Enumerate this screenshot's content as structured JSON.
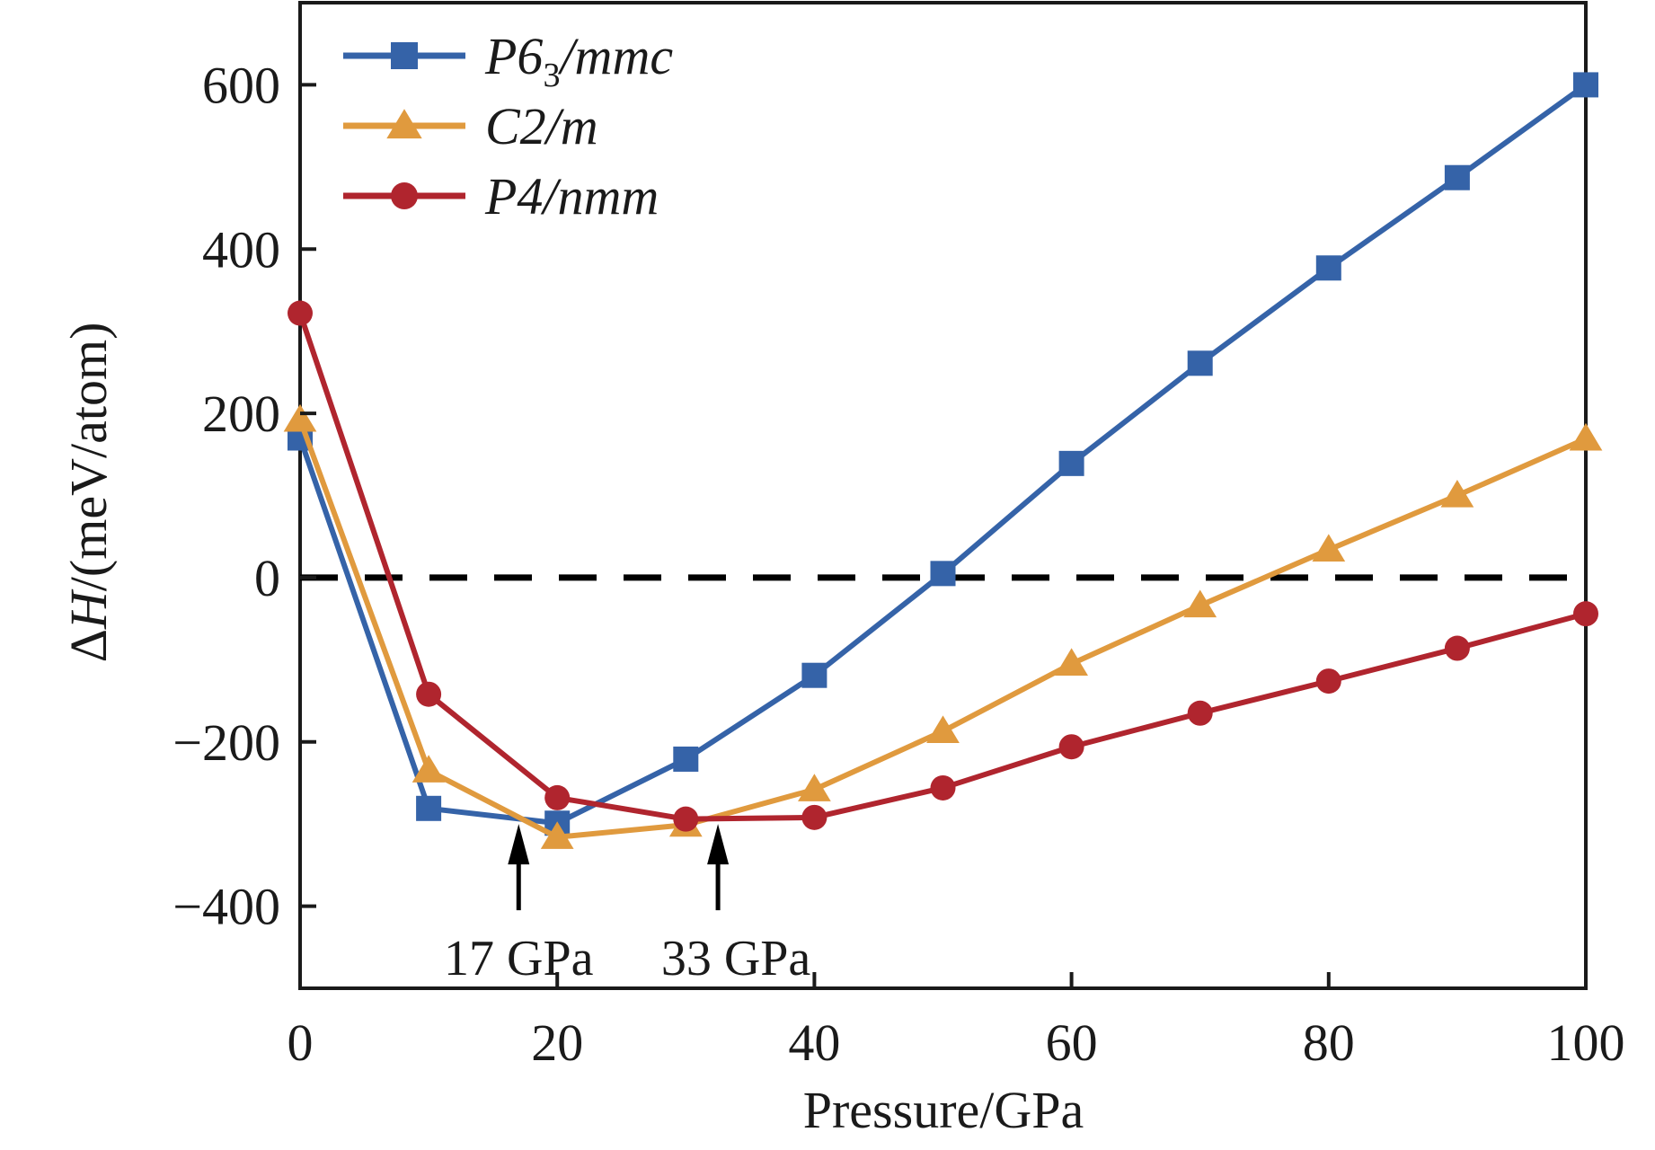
{
  "chart_data": {
    "type": "line",
    "title": "",
    "xlabel": "Pressure/GPa",
    "ylabel_parts": {
      "delta": "Δ",
      "var": "H",
      "unit": "/(meV/atom)"
    },
    "ylabel": "ΔH/(meV/atom)",
    "xlim": [
      0,
      100
    ],
    "ylim": [
      -500,
      700
    ],
    "xticks": [
      0,
      20,
      40,
      60,
      80,
      100
    ],
    "xtick_labels": [
      "0",
      "20",
      "40",
      "60",
      "80",
      "100"
    ],
    "yticks": [
      -400,
      -200,
      0,
      200,
      400,
      600
    ],
    "ytick_labels": [
      "−400",
      "−200",
      "0",
      "200",
      "400",
      "600"
    ],
    "grid": false,
    "legend_position": "top-left",
    "x": [
      0,
      10,
      20,
      30,
      40,
      50,
      60,
      70,
      80,
      90,
      100
    ],
    "series": [
      {
        "name": "P6₃/mmc",
        "label_main": "P6",
        "label_sub": "3",
        "label_rest": "/mmc",
        "marker": "square",
        "color": "#3563a8",
        "values": [
          170,
          -281,
          -299,
          -221,
          -119,
          5,
          139,
          261,
          377,
          487,
          600
        ]
      },
      {
        "name": "C2/m",
        "label_main": "C2/m",
        "label_sub": "",
        "label_rest": "",
        "marker": "triangle",
        "color": "#e09a3e",
        "values": [
          192,
          -235,
          -316,
          -301,
          -258,
          -187,
          -105,
          -34,
          34,
          100,
          169
        ]
      },
      {
        "name": "P4/nmm",
        "label_main": "P4/nmm",
        "label_sub": "",
        "label_rest": "",
        "marker": "circle",
        "color": "#b0252e",
        "values": [
          322,
          -142,
          -268,
          -294,
          -292,
          -256,
          -206,
          -165,
          -126,
          -86,
          -44
        ]
      }
    ],
    "reference_line": {
      "y": 0,
      "style": "dashed",
      "color": "#000000"
    },
    "annotations": [
      {
        "text": "17 GPa",
        "x": 17,
        "arrow_from_y": -405,
        "arrow_to_y": -300
      },
      {
        "text": "33 GPa",
        "x": 32.5,
        "arrow_from_y": -405,
        "arrow_to_y": -300
      }
    ]
  }
}
